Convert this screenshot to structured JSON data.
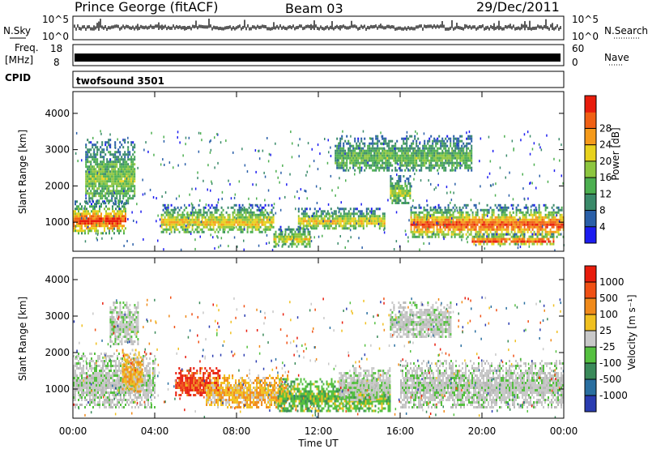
{
  "header": {
    "station": "Prince George (fitACF)",
    "beam": "Beam 03",
    "date": "29/Dec/2011"
  },
  "status_panels": {
    "nsky_label": "N.Sky",
    "nsky_ticks": [
      "10^5",
      "10^0"
    ],
    "nsearch_label": "N.Search",
    "nsearch_ticks": [
      "10^5",
      "10^0"
    ],
    "freq_label": "Freq.",
    "freq_unit": "[MHz]",
    "freq_ticks": [
      "18",
      "8"
    ],
    "nave_label": "Nave",
    "nave_ticks": [
      "60",
      "0"
    ],
    "cpid_label": "CPID",
    "cpid_value": "twofsound 3501"
  },
  "chart_data": [
    {
      "type": "heatmap",
      "name": "power-panel",
      "ylabel": "Slant Range [km]",
      "ylim": [
        200,
        4600
      ],
      "yticks": [
        "1000",
        "2000",
        "3000",
        "4000"
      ],
      "xlim_hours": [
        0,
        24
      ],
      "xticks": [
        "00:00",
        "04:00",
        "08:00",
        "12:00",
        "16:00",
        "20:00",
        "00:00"
      ],
      "colorbar": {
        "label": "Power [dB]",
        "ticks": [
          "4",
          "8",
          "12",
          "16",
          "20",
          "24",
          "28"
        ],
        "colors": [
          "#1c1cf0",
          "#2a5fa8",
          "#3a8a6a",
          "#4caf50",
          "#8dc63f",
          "#e8d21d",
          "#f59a1a",
          "#f06014",
          "#e81c0c"
        ]
      },
      "bands": [
        {
          "from_h": 0.0,
          "to_h": 2.6,
          "low_km": 700,
          "high_km": 1600,
          "core": 0.85
        },
        {
          "from_h": 0.6,
          "to_h": 3.0,
          "low_km": 1500,
          "high_km": 3300,
          "core": 0.35
        },
        {
          "from_h": 4.3,
          "to_h": 9.8,
          "low_km": 700,
          "high_km": 1500,
          "core": 0.55
        },
        {
          "from_h": 9.8,
          "to_h": 11.6,
          "low_km": 350,
          "high_km": 900,
          "core": 0.5
        },
        {
          "from_h": 11.0,
          "to_h": 15.2,
          "low_km": 800,
          "high_km": 1400,
          "core": 0.55
        },
        {
          "from_h": 15.5,
          "to_h": 16.5,
          "low_km": 1500,
          "high_km": 2300,
          "core": 0.4
        },
        {
          "from_h": 16.5,
          "to_h": 24.0,
          "low_km": 600,
          "high_km": 1500,
          "core": 0.8
        },
        {
          "from_h": 19.5,
          "to_h": 23.5,
          "low_km": 400,
          "high_km": 700,
          "core": 0.9
        },
        {
          "from_h": 12.8,
          "to_h": 19.5,
          "low_km": 2400,
          "high_km": 3400,
          "core": 0.3
        }
      ]
    },
    {
      "type": "heatmap",
      "name": "velocity-panel",
      "ylabel": "Slant Range [km]",
      "xlabel": "Time UT",
      "ylim": [
        200,
        4600
      ],
      "yticks": [
        "1000",
        "2000",
        "3000",
        "4000"
      ],
      "xlim_hours": [
        0,
        24
      ],
      "xticks": [
        "00:00",
        "04:00",
        "08:00",
        "12:00",
        "16:00",
        "20:00",
        "00:00"
      ],
      "colorbar": {
        "label": "Velocity [m s⁻¹]",
        "ticks": [
          "1000",
          "500",
          "100",
          "25",
          "-25",
          "-100",
          "-500",
          "-1000"
        ],
        "colors": [
          "#2a3cb0",
          "#2a6fa0",
          "#3a8a5a",
          "#55c040",
          "#c8c8c8",
          "#f0c020",
          "#f08a1a",
          "#f05014",
          "#e81c0c"
        ]
      },
      "bands": [
        {
          "from_h": 0.0,
          "to_h": 4.0,
          "low_km": 500,
          "high_km": 2000,
          "kind": "grey"
        },
        {
          "from_h": 1.8,
          "to_h": 3.2,
          "low_km": 2200,
          "high_km": 3400,
          "kind": "grey"
        },
        {
          "from_h": 2.4,
          "to_h": 3.4,
          "low_km": 900,
          "high_km": 2100,
          "kind": "orange"
        },
        {
          "from_h": 5.0,
          "to_h": 7.2,
          "low_km": 800,
          "high_km": 1600,
          "kind": "red"
        },
        {
          "from_h": 6.5,
          "to_h": 10.5,
          "low_km": 500,
          "high_km": 1400,
          "kind": "orange"
        },
        {
          "from_h": 10.0,
          "to_h": 15.5,
          "low_km": 400,
          "high_km": 1300,
          "kind": "green"
        },
        {
          "from_h": 13.0,
          "to_h": 15.5,
          "low_km": 700,
          "high_km": 1600,
          "kind": "grey"
        },
        {
          "from_h": 16.0,
          "to_h": 24.0,
          "low_km": 500,
          "high_km": 1800,
          "kind": "grey"
        },
        {
          "from_h": 15.5,
          "to_h": 18.5,
          "low_km": 2400,
          "high_km": 3400,
          "kind": "grey"
        }
      ]
    }
  ]
}
